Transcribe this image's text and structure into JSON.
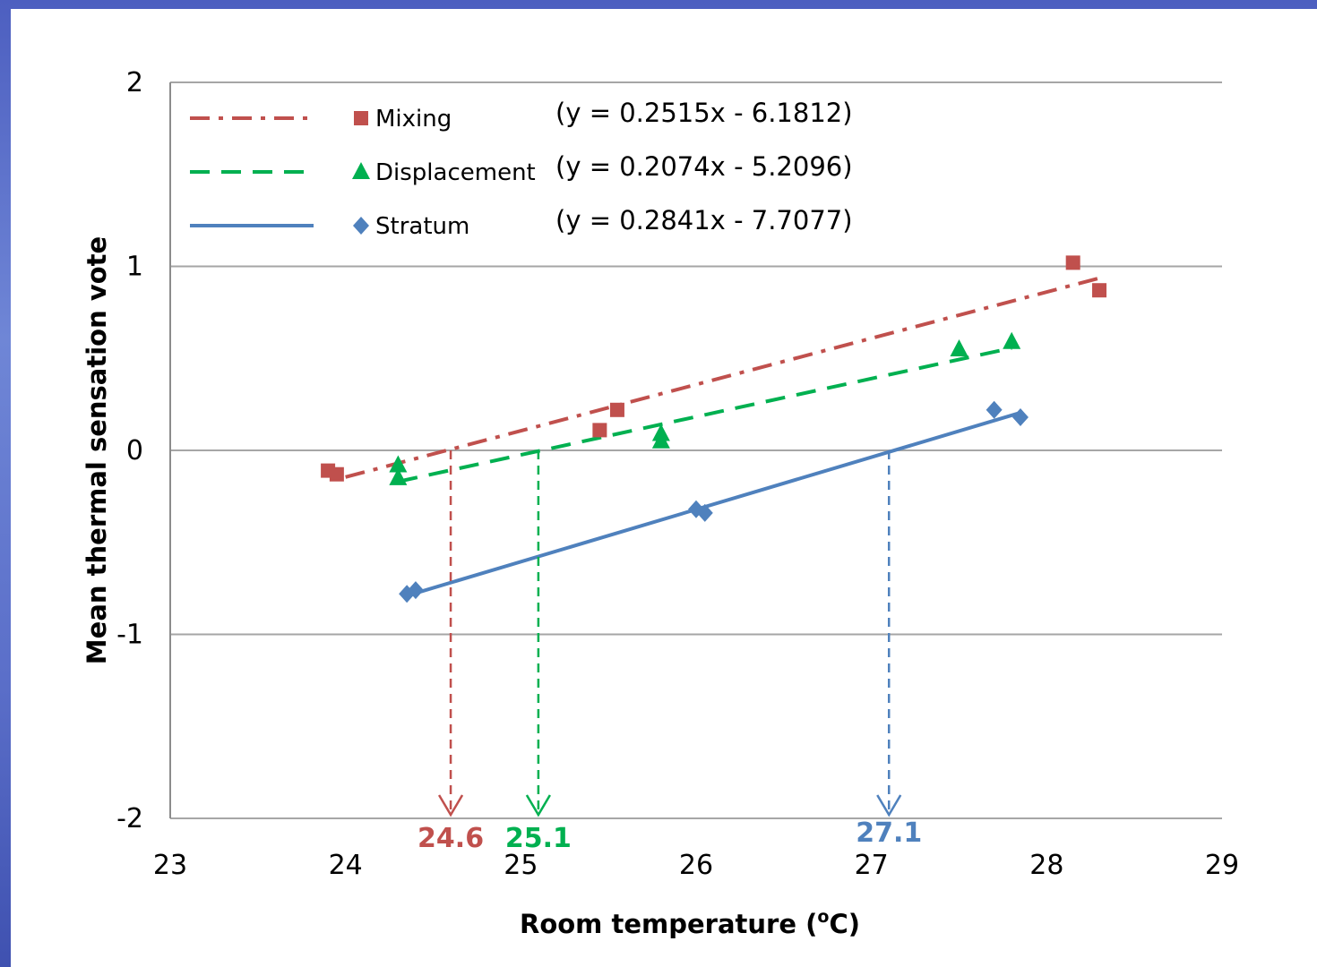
{
  "chart_data": {
    "type": "scatter",
    "xlabel": "Room temperature (",
    "xlabel_sup": "o",
    "xlabel_tail": "C)",
    "ylabel": "Mean thermal sensation vote",
    "xlim": [
      23,
      29
    ],
    "ylim": [
      -2,
      2
    ],
    "xticks": [
      "23",
      "24",
      "25",
      "26",
      "27",
      "28",
      "29"
    ],
    "yticks": [
      "2",
      "1",
      "0",
      "-1",
      "-2"
    ],
    "grid": "horizontal",
    "legend_position": "top-left",
    "series": [
      {
        "name": "Mixing",
        "marker": "square",
        "line_style": "dash-dot",
        "color": "#c0504d",
        "equation": "(y = 0.2515x - 6.1812)",
        "slope": 0.2515,
        "intercept": -6.1812,
        "fit_range": [
          24.0,
          28.3
        ],
        "points": [
          [
            23.9,
            -0.11
          ],
          [
            23.95,
            -0.13
          ],
          [
            25.45,
            0.11
          ],
          [
            25.55,
            0.22
          ],
          [
            28.15,
            1.02
          ],
          [
            28.3,
            0.87
          ]
        ],
        "threshold": 24.6,
        "threshold_label": "24.6"
      },
      {
        "name": "Displacement",
        "marker": "triangle",
        "line_style": "dashed",
        "color": "#00b050",
        "equation": "(y = 0.2074x - 5.2096)",
        "slope": 0.2074,
        "intercept": -5.2096,
        "fit_range": [
          24.3,
          27.8
        ],
        "points": [
          [
            24.3,
            -0.08
          ],
          [
            24.3,
            -0.15
          ],
          [
            25.8,
            0.05
          ],
          [
            25.8,
            0.09
          ],
          [
            27.5,
            0.55
          ],
          [
            27.8,
            0.59
          ]
        ],
        "threshold": 25.1,
        "threshold_label": "25.1"
      },
      {
        "name": "Stratum",
        "marker": "diamond",
        "line_style": "solid",
        "color": "#4f81bd",
        "equation": "(y = 0.2841x - 7.7077)",
        "slope": 0.2841,
        "intercept": -7.7077,
        "fit_range": [
          24.4,
          27.85
        ],
        "points": [
          [
            24.35,
            -0.78
          ],
          [
            24.4,
            -0.76
          ],
          [
            26.0,
            -0.32
          ],
          [
            26.05,
            -0.34
          ],
          [
            27.7,
            0.22
          ],
          [
            27.85,
            0.18
          ]
        ],
        "threshold": 27.1,
        "threshold_label": "27.1"
      }
    ]
  }
}
